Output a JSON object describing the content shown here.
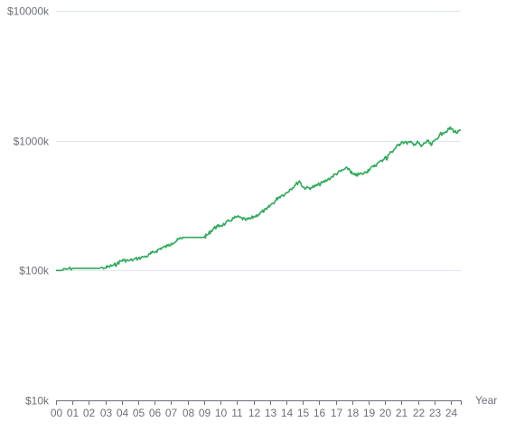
{
  "chart_data": {
    "type": "line",
    "title": "",
    "xlabel": "Year",
    "ylabel": "",
    "y_scale": "log",
    "ylim": [
      10,
      10000
    ],
    "y_unit": "k",
    "y_ticks": [
      {
        "value": 10,
        "label": "$10k"
      },
      {
        "value": 100,
        "label": "$100k"
      },
      {
        "value": 1000,
        "label": "$1000k"
      },
      {
        "value": 10000,
        "label": "$10000k"
      }
    ],
    "xlim": [
      2000,
      2024.6
    ],
    "x_ticks": [
      {
        "value": 2000,
        "label": "00"
      },
      {
        "value": 2001,
        "label": "01"
      },
      {
        "value": 2002,
        "label": "02"
      },
      {
        "value": 2003,
        "label": "03"
      },
      {
        "value": 2004,
        "label": "04"
      },
      {
        "value": 2005,
        "label": "05"
      },
      {
        "value": 2006,
        "label": "06"
      },
      {
        "value": 2007,
        "label": "07"
      },
      {
        "value": 2008,
        "label": "08"
      },
      {
        "value": 2009,
        "label": "09"
      },
      {
        "value": 2010,
        "label": "10"
      },
      {
        "value": 2011,
        "label": "11"
      },
      {
        "value": 2012,
        "label": "12"
      },
      {
        "value": 2013,
        "label": "13"
      },
      {
        "value": 2014,
        "label": "14"
      },
      {
        "value": 2015,
        "label": "15"
      },
      {
        "value": 2016,
        "label": "16"
      },
      {
        "value": 2017,
        "label": "17"
      },
      {
        "value": 2018,
        "label": "18"
      },
      {
        "value": 2019,
        "label": "19"
      },
      {
        "value": 2020,
        "label": "20"
      },
      {
        "value": 2021,
        "label": "21"
      },
      {
        "value": 2022,
        "label": "22"
      },
      {
        "value": 2023,
        "label": "23"
      },
      {
        "value": 2024,
        "label": "24"
      }
    ],
    "grid": true,
    "legend": "none",
    "series": [
      {
        "color": "#2eaa5a",
        "x": [
          2000.0,
          2000.3,
          2000.6,
          2001.0,
          2001.5,
          2002.0,
          2002.5,
          2003.0,
          2003.2,
          2003.5,
          2003.7,
          2003.9,
          2004.1,
          2004.4,
          2004.7,
          2005.0,
          2005.3,
          2005.6,
          2005.8,
          2006.1,
          2006.3,
          2006.5,
          2006.8,
          2007.0,
          2007.3,
          2007.5,
          2007.7,
          2008.0,
          2008.5,
          2009.0,
          2009.2,
          2009.4,
          2009.6,
          2009.8,
          2010.0,
          2010.3,
          2010.5,
          2010.8,
          2011.0,
          2011.3,
          2011.5,
          2011.8,
          2012.0,
          2012.3,
          2012.5,
          2012.8,
          2013.0,
          2013.3,
          2013.5,
          2013.7,
          2014.0,
          2014.2,
          2014.5,
          2014.8,
          2015.0,
          2015.2,
          2015.5,
          2015.8,
          2016.0,
          2016.2,
          2016.5,
          2016.8,
          2017.0,
          2017.3,
          2017.5,
          2017.8,
          2018.0,
          2018.2,
          2018.4,
          2018.6,
          2018.9,
          2019.0,
          2019.3,
          2019.5,
          2019.8,
          2020.0,
          2020.1,
          2020.2,
          2020.4,
          2020.6,
          2020.8,
          2021.0,
          2021.3,
          2021.5,
          2021.8,
          2022.0,
          2022.2,
          2022.4,
          2022.6,
          2022.8,
          2023.0,
          2023.3,
          2023.5,
          2023.8,
          2024.0,
          2024.2,
          2024.4,
          2024.6
        ],
        "values": [
          100,
          100,
          102,
          104,
          104,
          104,
          104,
          105,
          107,
          110,
          112,
          118,
          120,
          119,
          121,
          124,
          127,
          130,
          136,
          141,
          147,
          150,
          155,
          162,
          168,
          175,
          180,
          180,
          180,
          180,
          188,
          200,
          212,
          218,
          222,
          230,
          240,
          252,
          258,
          252,
          245,
          250,
          258,
          270,
          282,
          295,
          315,
          340,
          365,
          378,
          395,
          420,
          450,
          490,
          440,
          430,
          435,
          448,
          460,
          475,
          500,
          530,
          555,
          580,
          600,
          610,
          555,
          540,
          550,
          555,
          575,
          600,
          630,
          660,
          700,
          750,
          720,
          780,
          820,
          870,
          920,
          980,
          960,
          970,
          940,
          970,
          900,
          960,
          990,
          920,
          1000,
          1100,
          1150,
          1200,
          1250,
          1180,
          1150,
          1200
        ]
      }
    ]
  }
}
